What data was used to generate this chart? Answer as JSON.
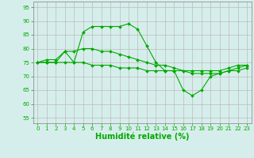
{
  "x": [
    0,
    1,
    2,
    3,
    4,
    5,
    6,
    7,
    8,
    9,
    10,
    11,
    12,
    13,
    14,
    15,
    16,
    17,
    18,
    19,
    20,
    21,
    22,
    23
  ],
  "line1": [
    75,
    75,
    75,
    79,
    75,
    86,
    88,
    88,
    88,
    88,
    89,
    87,
    81,
    75,
    72,
    72,
    65,
    63,
    65,
    70,
    71,
    72,
    73,
    74
  ],
  "line2": [
    75,
    76,
    76,
    79,
    79,
    80,
    80,
    79,
    79,
    78,
    77,
    76,
    75,
    74,
    74,
    73,
    72,
    72,
    72,
    72,
    72,
    73,
    74,
    74
  ],
  "line3": [
    75,
    75,
    75,
    75,
    75,
    75,
    74,
    74,
    74,
    73,
    73,
    73,
    72,
    72,
    72,
    72,
    72,
    71,
    71,
    71,
    71,
    72,
    72,
    73
  ],
  "bg_color": "#d6eeeb",
  "grid_color": "#bbbbbb",
  "line_color": "#00aa00",
  "marker": "D",
  "markersize": 2.0,
  "linewidth": 0.8,
  "xlabel": "Humidité relative (%)",
  "xlabel_fontsize": 7,
  "tick_fontsize": 5,
  "ylabel_ticks": [
    55,
    60,
    65,
    70,
    75,
    80,
    85,
    90,
    95
  ],
  "ylim": [
    53,
    97
  ],
  "xlim": [
    -0.5,
    23.5
  ]
}
